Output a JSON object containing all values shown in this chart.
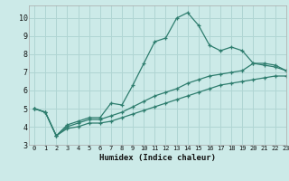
{
  "xlabel": "Humidex (Indice chaleur)",
  "background_color": "#cceae8",
  "grid_color": "#b0d5d3",
  "line_color": "#2e7d6e",
  "xlim": [
    -0.5,
    23
  ],
  "ylim": [
    3.0,
    10.7
  ],
  "yticks": [
    3,
    4,
    5,
    6,
    7,
    8,
    9,
    10
  ],
  "xticks": [
    0,
    1,
    2,
    3,
    4,
    5,
    6,
    7,
    8,
    9,
    10,
    11,
    12,
    13,
    14,
    15,
    16,
    17,
    18,
    19,
    20,
    21,
    22,
    23
  ],
  "line1_x": [
    0,
    1,
    2,
    3,
    4,
    5,
    6,
    7,
    8,
    9,
    10,
    11,
    12,
    13,
    14,
    15,
    16,
    17,
    18,
    19,
    20,
    21,
    22,
    23
  ],
  "line1_y": [
    5.0,
    4.8,
    3.5,
    4.1,
    4.3,
    4.5,
    4.5,
    5.3,
    5.2,
    6.3,
    7.5,
    8.7,
    8.9,
    10.0,
    10.3,
    9.6,
    8.5,
    8.2,
    8.4,
    8.2,
    7.5,
    7.5,
    7.4,
    7.1
  ],
  "line2_x": [
    0,
    1,
    2,
    3,
    4,
    5,
    6,
    7,
    8,
    9,
    10,
    11,
    12,
    13,
    14,
    15,
    16,
    17,
    18,
    19,
    20,
    21,
    22,
    23
  ],
  "line2_y": [
    5.0,
    4.8,
    3.5,
    4.0,
    4.2,
    4.4,
    4.4,
    4.6,
    4.8,
    5.1,
    5.4,
    5.7,
    5.9,
    6.1,
    6.4,
    6.6,
    6.8,
    6.9,
    7.0,
    7.1,
    7.5,
    7.4,
    7.3,
    7.1
  ],
  "line3_x": [
    0,
    1,
    2,
    3,
    4,
    5,
    6,
    7,
    8,
    9,
    10,
    11,
    12,
    13,
    14,
    15,
    16,
    17,
    18,
    19,
    20,
    21,
    22,
    23
  ],
  "line3_y": [
    5.0,
    4.8,
    3.5,
    3.9,
    4.0,
    4.2,
    4.2,
    4.3,
    4.5,
    4.7,
    4.9,
    5.1,
    5.3,
    5.5,
    5.7,
    5.9,
    6.1,
    6.3,
    6.4,
    6.5,
    6.6,
    6.7,
    6.8,
    6.8
  ]
}
